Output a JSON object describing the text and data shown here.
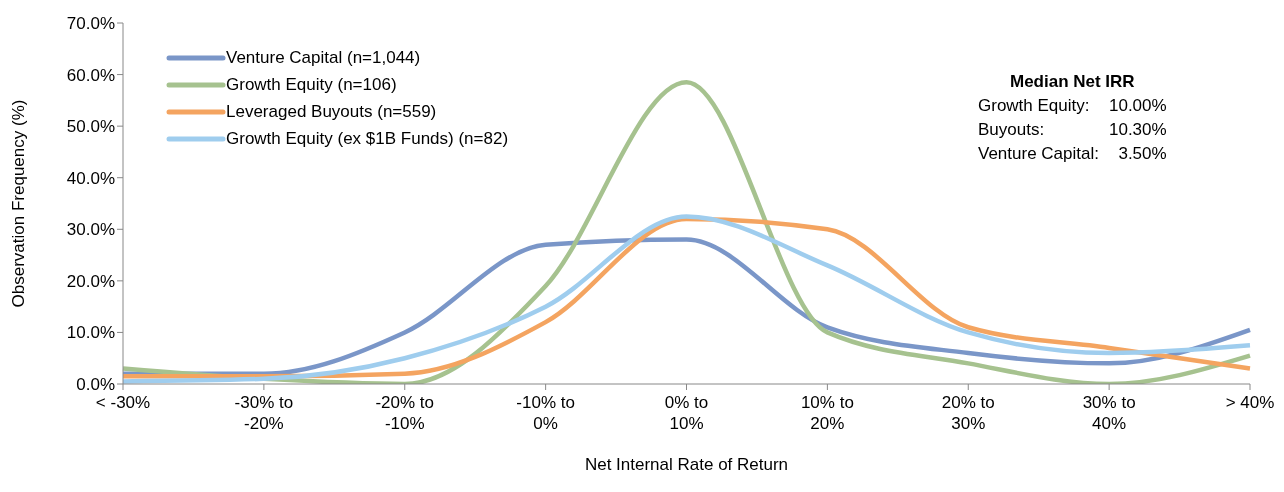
{
  "chart_data": {
    "type": "line",
    "xlabel": "Net Internal Rate of Return",
    "ylabel": "Observation Frequency (%)",
    "categories": [
      "< -30%",
      "-30% to -20%",
      "-20% to -10%",
      "-10% to 0%",
      "0% to 10%",
      "10% to 20%",
      "20% to 30%",
      "30% to 40%",
      "> 40%"
    ],
    "series": [
      {
        "name": "Venture Capital (n=1,044)",
        "color": "#7a96c8",
        "values": [
          2,
          2,
          10,
          27,
          28,
          11,
          6,
          4,
          10.5
        ]
      },
      {
        "name": "Growth Equity (n=106)",
        "color": "#a6c28f",
        "values": [
          3,
          1,
          0,
          19,
          58.5,
          10,
          4,
          0,
          5.5
        ]
      },
      {
        "name": "Leveraged Buyouts (n=559)",
        "color": "#f4a460",
        "values": [
          1.5,
          1.5,
          2,
          12,
          32,
          30,
          11,
          7,
          3
        ]
      },
      {
        "name": "Growth Equity (ex $1B Funds) (n=82)",
        "color": "#9fcdee",
        "values": [
          0.5,
          1,
          5,
          15,
          32.5,
          23,
          10,
          6,
          7.5
        ]
      }
    ],
    "ylim": [
      0,
      70
    ],
    "yticks": [
      {
        "value": 0,
        "label": "0.0%"
      },
      {
        "value": 10,
        "label": "10.0%"
      },
      {
        "value": 20,
        "label": "20.0%"
      },
      {
        "value": 30,
        "label": "30.0%"
      },
      {
        "value": 40,
        "label": "40.0%"
      },
      {
        "value": 50,
        "label": "50.0%"
      },
      {
        "value": 60,
        "label": "60.0%"
      },
      {
        "value": 70,
        "label": "70.0%"
      }
    ],
    "grid": false,
    "legend": "top left",
    "marker": "none",
    "line_style": "solid",
    "annotations": [
      "Median Net IRR",
      "Growth Equity:",
      "10.00%",
      "Buyouts:",
      "10.30%",
      "Venture Capital:",
      "3.50%"
    ]
  }
}
